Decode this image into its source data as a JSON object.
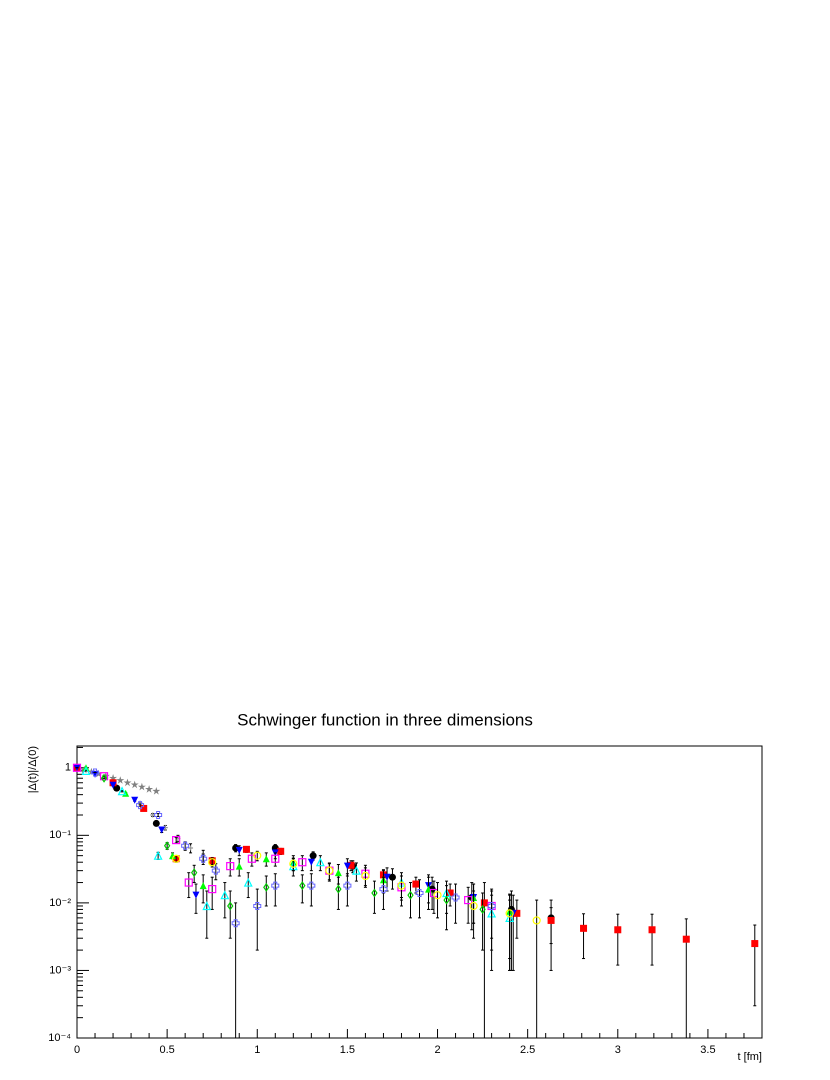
{
  "chart_data": {
    "type": "scatter",
    "title": "Schwinger function in three dimensions",
    "x_label": "t [fm]",
    "y_label": "|Δ(t)|/Δ(0)",
    "log_y": true,
    "xlim": [
      0,
      3.8
    ],
    "ylim": [
      0.0001,
      2.1
    ],
    "xticks": [
      0,
      0.5,
      1,
      1.5,
      2,
      2.5,
      3,
      3.5
    ],
    "yticks": [
      {
        "value": 0.0001,
        "label": "10⁻⁴"
      },
      {
        "value": 0.001,
        "label": "10⁻³"
      },
      {
        "value": 0.01,
        "label": "10⁻²"
      },
      {
        "value": 0.1,
        "label": "10⁻¹"
      },
      1
    ],
    "series": [
      {
        "color": "#808080",
        "marker": "star",
        "x": [
          0,
          0.04,
          0.08,
          0.12,
          0.16,
          0.2,
          0.24,
          0.28,
          0.32,
          0.36,
          0.4,
          0.44
        ],
        "values": [
          1,
          0.93,
          0.87,
          0.81,
          0.75,
          0.7,
          0.65,
          0.6,
          0.56,
          0.52,
          0.48,
          0.45
        ]
      },
      {
        "color": "#999999",
        "marker": "plus",
        "x": [
          0.35,
          0.42,
          0.49,
          0.56,
          0.63,
          0.7
        ],
        "values": [
          0.3,
          0.2,
          0.13,
          0.09,
          0.065,
          0.05
        ],
        "errors": [
          0.01,
          0.01,
          0.01,
          0.01,
          0.01,
          0.01
        ]
      },
      {
        "color": "#000000",
        "marker": "circle",
        "x": [
          0,
          0.22,
          0.44,
          0.88,
          1.1,
          1.31,
          1.53,
          1.75,
          1.97,
          2.19,
          2.41,
          2.63
        ],
        "values": [
          1,
          0.5,
          0.15,
          0.065,
          0.065,
          0.05,
          0.035,
          0.024,
          0.016,
          0.012,
          0.008,
          0.006
        ],
        "errors": [
          0,
          0.01,
          0.01,
          0.008,
          0.008,
          0.007,
          0.007,
          0.008,
          0.008,
          0.008,
          0.007,
          0.005
        ]
      },
      {
        "color": "#ff0000",
        "marker": "square",
        "x": [
          0,
          0.2,
          0.37,
          0.55,
          0.75,
          0.94,
          1.13,
          1.52,
          1.7,
          1.88,
          2.07,
          2.26,
          2.44,
          2.63,
          2.81,
          3.0,
          3.19,
          3.38,
          3.76
        ],
        "values": [
          1,
          0.6,
          0.25,
          0.045,
          0.042,
          0.062,
          0.058,
          0.036,
          0.026,
          0.019,
          0.014,
          0.01,
          0.007,
          0.0055,
          0.0042,
          0.004,
          0.004,
          0.0029,
          0.0025
        ],
        "errors": [
          0,
          0.01,
          0.01,
          0.003,
          0.005,
          0.006,
          0.006,
          0.006,
          0.005,
          0.005,
          0.005,
          0.01,
          0.004,
          0.003,
          0.0027,
          0.0028,
          0.0028,
          0.0029,
          0.0022
        ]
      },
      {
        "color": "#0000ff",
        "marker": "tri-down",
        "x": [
          0,
          0.1,
          0.2,
          0.32,
          0.47,
          0.66,
          0.9,
          1.1,
          1.3,
          1.5,
          1.72,
          1.95,
          2.2,
          2.42
        ],
        "values": [
          1,
          0.8,
          0.55,
          0.33,
          0.12,
          0.013,
          0.06,
          0.055,
          0.04,
          0.035,
          0.024,
          0.018,
          0.012,
          0.007
        ],
        "errors": [
          0,
          0.01,
          0.01,
          0.01,
          0.01,
          0.006,
          0.01,
          0.01,
          0.01,
          0.01,
          0.009,
          0.008,
          0.007,
          0.006
        ]
      },
      {
        "color": "#00ff00",
        "marker": "tri-up",
        "x": [
          0.05,
          0.27,
          0.53,
          0.7,
          0.9,
          1.05,
          1.2,
          1.45,
          1.7,
          1.95,
          2.2,
          2.4
        ],
        "values": [
          1,
          0.42,
          0.05,
          0.018,
          0.035,
          0.045,
          0.04,
          0.028,
          0.022,
          0.016,
          0.012,
          0.0075
        ],
        "errors": [
          0,
          0.01,
          0.005,
          0.008,
          0.01,
          0.01,
          0.01,
          0.009,
          0.008,
          0.008,
          0.007,
          0.006
        ]
      },
      {
        "color": "#ff00ff",
        "marker": "open-square",
        "x": [
          0,
          0.15,
          0.55,
          0.62,
          0.75,
          0.85,
          0.97,
          1.1,
          1.25,
          1.4,
          1.6,
          1.8,
          1.98,
          2.17,
          2.3
        ],
        "values": [
          1,
          0.75,
          0.085,
          0.02,
          0.016,
          0.035,
          0.045,
          0.045,
          0.04,
          0.03,
          0.027,
          0.017,
          0.014,
          0.011,
          0.009
        ],
        "errors": [
          0,
          0.01,
          0.008,
          0.008,
          0.008,
          0.01,
          0.01,
          0.01,
          0.01,
          0.009,
          0.009,
          0.008,
          0.007,
          0.006,
          0.006
        ]
      },
      {
        "color": "#00ffff",
        "marker": "open-tri",
        "x": [
          0.05,
          0.25,
          0.45,
          0.72,
          0.82,
          0.95,
          1.2,
          1.35,
          1.55,
          1.8,
          2.05,
          2.3,
          2.4
        ],
        "values": [
          0.9,
          0.45,
          0.05,
          0.009,
          0.013,
          0.02,
          0.035,
          0.04,
          0.03,
          0.02,
          0.014,
          0.007,
          0.006
        ],
        "errors": [
          0,
          0.01,
          0.006,
          0.006,
          0.007,
          0.008,
          0.01,
          0.01,
          0.009,
          0.008,
          0.007,
          0.006,
          0.005
        ]
      },
      {
        "color": "#6666ff",
        "marker": "open-cross",
        "x": [
          0.1,
          0.35,
          0.45,
          0.6,
          0.7,
          0.77,
          0.88,
          1.0,
          1.1,
          1.3,
          1.5,
          1.7,
          1.9,
          2.1,
          2.3
        ],
        "values": [
          0.85,
          0.28,
          0.2,
          0.07,
          0.045,
          0.03,
          0.005,
          0.009,
          0.018,
          0.018,
          0.018,
          0.016,
          0.014,
          0.012,
          0.009
        ],
        "errors": [
          0,
          0.01,
          0.01,
          0.01,
          0.008,
          0.008,
          0.005,
          0.007,
          0.009,
          0.009,
          0.009,
          0.008,
          0.008,
          0.007,
          0.007
        ]
      },
      {
        "color": "#00cc00",
        "marker": "open-diamond",
        "x": [
          0.15,
          0.5,
          0.65,
          0.85,
          1.05,
          1.25,
          1.45,
          1.65,
          1.85,
          2.05,
          2.25
        ],
        "values": [
          0.7,
          0.07,
          0.028,
          0.009,
          0.017,
          0.018,
          0.016,
          0.014,
          0.013,
          0.011,
          0.008
        ],
        "errors": [
          0,
          0.008,
          0.008,
          0.006,
          0.008,
          0.008,
          0.008,
          0.007,
          0.007,
          0.007,
          0.006
        ]
      },
      {
        "color": "#ffff00",
        "marker": "open-circle",
        "x": [
          0.55,
          0.75,
          1.0,
          1.2,
          1.4,
          1.6,
          1.8,
          2.0,
          2.2,
          2.4,
          2.55
        ],
        "values": [
          0.045,
          0.04,
          0.05,
          0.038,
          0.03,
          0.025,
          0.018,
          0.013,
          0.009,
          0.007,
          0.0055
        ],
        "errors": [
          0.005,
          0.006,
          0.008,
          0.008,
          0.008,
          0.008,
          0.007,
          0.007,
          0.006,
          0.006,
          0.0055
        ]
      }
    ]
  }
}
